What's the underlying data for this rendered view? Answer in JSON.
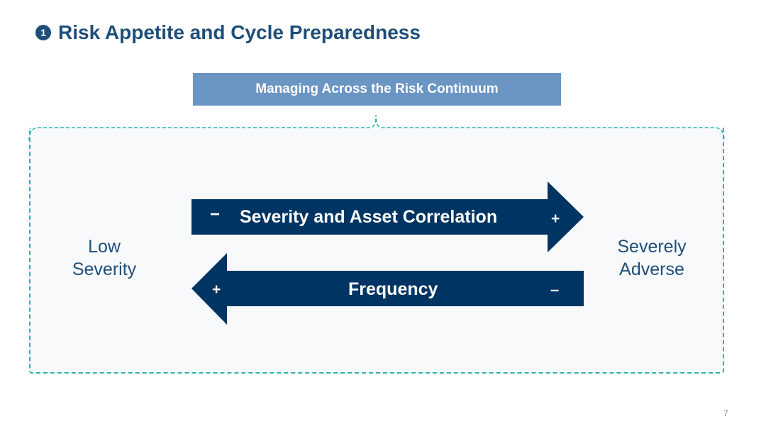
{
  "title": {
    "number": "1",
    "text": "Risk Appetite and Cycle Preparedness"
  },
  "banner": {
    "text": "Managing Across the Risk Continuum"
  },
  "left_label": {
    "line1": "Low",
    "line2": "Severity"
  },
  "right_label": {
    "line1": "Severely",
    "line2": "Adverse"
  },
  "top_arrow": {
    "label": "Severity and Asset Correlation",
    "left_sign": "−",
    "right_sign": "+"
  },
  "bottom_arrow": {
    "label": "Frequency",
    "left_sign": "+",
    "right_sign": "–"
  },
  "page_number": "7",
  "colors": {
    "navy": "#003462",
    "banner": "#6b95c3",
    "dashed": "#2bb3b0",
    "title": "#1f4e79"
  }
}
